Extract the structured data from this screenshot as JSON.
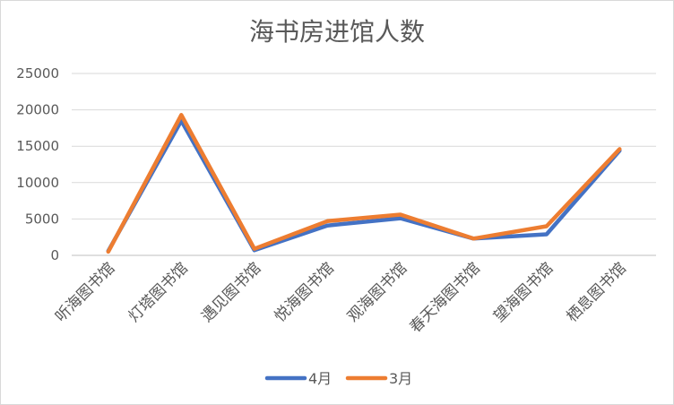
{
  "chart_data": {
    "type": "line",
    "title": "海书房进馆人数",
    "categories": [
      "听海图书馆",
      "灯塔图书馆",
      "遇见图书馆",
      "悦海图书馆",
      "观海图书馆",
      "春天海图书馆",
      "望海图书馆",
      "栖息图书馆"
    ],
    "series": [
      {
        "name": "4月",
        "color": "#4472C4",
        "values": [
          600,
          18500,
          700,
          4100,
          5100,
          2300,
          2900,
          14400
        ]
      },
      {
        "name": "3月",
        "color": "#ED7D31",
        "values": [
          500,
          19300,
          900,
          4700,
          5600,
          2300,
          4000,
          14600
        ]
      }
    ],
    "ylim": [
      0,
      25000
    ],
    "yticks": [
      "0",
      "5000",
      "10000",
      "15000",
      "20000",
      "25000"
    ],
    "grid": true,
    "legend": "bottom"
  }
}
